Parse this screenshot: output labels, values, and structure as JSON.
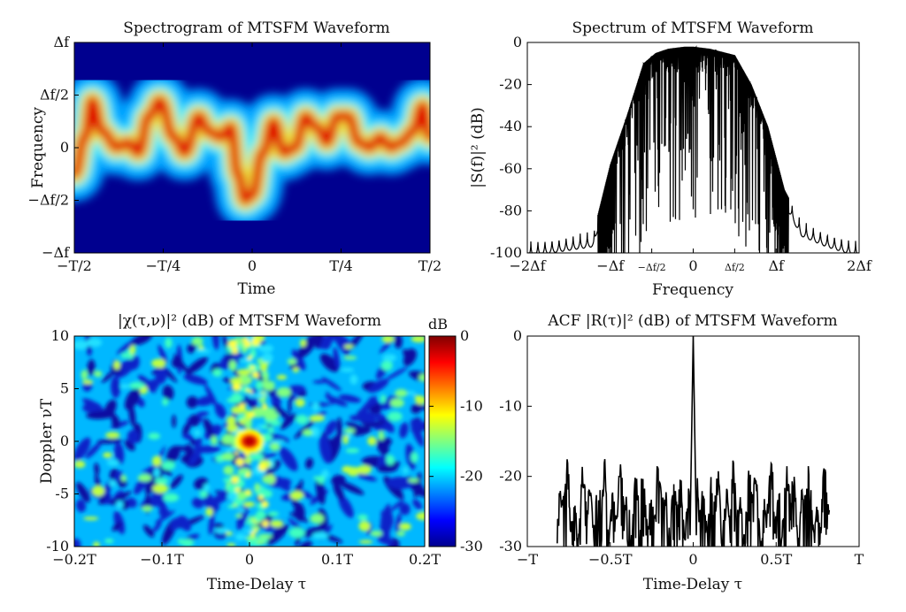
{
  "chart_data": [
    {
      "type": "heatmap",
      "title": "Spectrogram of MTSFM Waveform",
      "xlabel": "Time",
      "ylabel": "Frequency",
      "xticks": [
        "−T/2",
        "−T/4",
        "0",
        "T/4",
        "T/2"
      ],
      "yticks": [
        "Δf",
        "Δf/2",
        "0",
        "−Δf/2",
        "−Δf"
      ],
      "xlim": [
        -0.5,
        0.5
      ],
      "ylim": [
        -1,
        1
      ],
      "instantaneous_frequency": {
        "t": [
          -0.5,
          -0.47,
          -0.45,
          -0.42,
          -0.38,
          -0.35,
          -0.32,
          -0.29,
          -0.26,
          -0.22,
          -0.19,
          -0.15,
          -0.12,
          -0.09,
          -0.06,
          -0.04,
          -0.02,
          0.0,
          0.03,
          0.06,
          0.09,
          0.12,
          0.15,
          0.18,
          0.21,
          0.24,
          0.27,
          0.3,
          0.33,
          0.36,
          0.39,
          0.42,
          0.45,
          0.48,
          0.5
        ],
        "f": [
          -0.25,
          0.1,
          0.45,
          0.15,
          0.0,
          0.05,
          -0.05,
          0.3,
          0.45,
          0.1,
          -0.05,
          0.3,
          0.15,
          0.1,
          0.2,
          -0.25,
          -0.5,
          -0.45,
          -0.05,
          0.25,
          -0.05,
          0.0,
          0.3,
          0.2,
          0.05,
          0.3,
          0.3,
          0.05,
          0.0,
          0.1,
          0.0,
          0.05,
          0.15,
          0.4,
          0.1
        ]
      }
    },
    {
      "type": "line",
      "title": "Spectrum of MTSFM Waveform",
      "xlabel": "Frequency",
      "ylabel": "|S(f)|² (dB)",
      "xticks": [
        "−2Δf",
        "−Δf",
        "−Δf/2",
        "0",
        "Δf/2",
        "Δf",
        "2Δf"
      ],
      "xtick_values": [
        -2,
        -1,
        -0.5,
        0,
        0.5,
        1,
        2
      ],
      "yticks": [
        0,
        -20,
        -40,
        -60,
        -80,
        -100
      ],
      "xlim": [
        -2,
        2
      ],
      "ylim": [
        -100,
        0
      ],
      "envelope": {
        "x": [
          -2.0,
          -1.7,
          -1.2,
          -1.0,
          -0.8,
          -0.6,
          -0.45,
          -0.3,
          -0.1,
          0.0,
          0.2,
          0.5,
          0.7,
          0.9,
          1.1,
          1.3,
          1.6,
          2.0
        ],
        "y": [
          -95,
          -93,
          -90,
          -58,
          -35,
          -10,
          -5,
          -3,
          -2,
          -2,
          -3,
          -6,
          -20,
          -40,
          -70,
          -85,
          -90,
          -95
        ]
      }
    },
    {
      "type": "heatmap",
      "title": "|χ(τ,ν)|² (dB) of MTSFM Waveform",
      "xlabel": "Time-Delay τ",
      "ylabel": "Doppler νT",
      "xticks": [
        "−0.2T",
        "−0.1T",
        "0",
        "0.1T",
        "0.2T"
      ],
      "yticks": [
        10,
        5,
        0,
        -5,
        -10
      ],
      "xlim": [
        -0.2,
        0.2
      ],
      "ylim": [
        -10,
        10
      ],
      "colorbar": {
        "label": "dB",
        "ticks": [
          0,
          -10,
          -20,
          -30
        ],
        "range": [
          -30,
          0
        ]
      }
    },
    {
      "type": "line",
      "title": "ACF |R(τ)|² (dB) of MTSFM Waveform",
      "xlabel": "Time-Delay τ",
      "ylabel": "",
      "xticks": [
        "−T",
        "−0.5T",
        "0",
        "0.5T",
        "T"
      ],
      "xtick_values": [
        -1,
        -0.5,
        0,
        0.5,
        1
      ],
      "yticks": [
        0,
        -10,
        -20,
        -30
      ],
      "xlim": [
        -1,
        1
      ],
      "ylim": [
        -30,
        0
      ],
      "peak": {
        "x": 0,
        "y": 0
      },
      "sidelobe_level": -20
    }
  ]
}
